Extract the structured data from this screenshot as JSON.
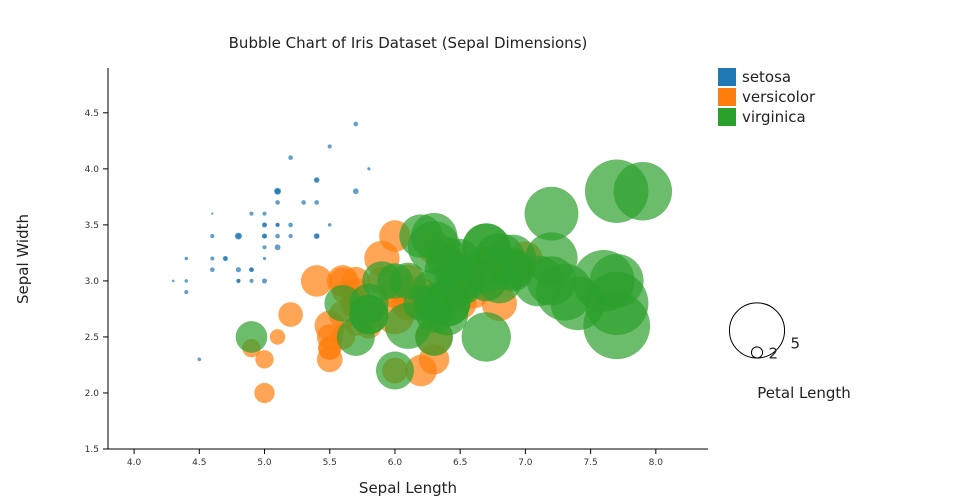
{
  "chart_data": {
    "type": "scatter",
    "title": "Bubble Chart of Iris Dataset (Sepal Dimensions)",
    "xlabel": "Sepal Length",
    "ylabel": "Sepal Width",
    "xlim": [
      3.8,
      8.4
    ],
    "ylim": [
      1.5,
      4.9
    ],
    "x_ticks": [
      "4.0",
      "4.5",
      "5.0",
      "5.5",
      "6.0",
      "6.5",
      "7.0",
      "7.5",
      "8.0"
    ],
    "y_ticks": [
      "1.5",
      "2.0",
      "2.5",
      "3.0",
      "3.5",
      "4.0",
      "4.5"
    ],
    "x_tick_values": [
      4.0,
      4.5,
      5.0,
      5.5,
      6.0,
      6.5,
      7.0,
      7.5,
      8.0
    ],
    "y_tick_values": [
      1.5,
      2.0,
      2.5,
      3.0,
      3.5,
      4.0,
      4.5
    ],
    "size_variable": "Petal Length",
    "size_legend": [
      {
        "label": "5",
        "value": 5
      },
      {
        "label": "2",
        "value": 2
      }
    ],
    "legend_position": "top-right",
    "grid": false,
    "series": [
      {
        "name": "setosa",
        "color": "#1f77b4",
        "points": [
          [
            5.1,
            3.5,
            1.4
          ],
          [
            4.9,
            3.0,
            1.4
          ],
          [
            4.7,
            3.2,
            1.3
          ],
          [
            4.6,
            3.1,
            1.5
          ],
          [
            5.0,
            3.6,
            1.4
          ],
          [
            5.4,
            3.9,
            1.7
          ],
          [
            4.6,
            3.4,
            1.4
          ],
          [
            5.0,
            3.4,
            1.5
          ],
          [
            4.4,
            2.9,
            1.4
          ],
          [
            4.9,
            3.1,
            1.5
          ],
          [
            5.4,
            3.7,
            1.5
          ],
          [
            4.8,
            3.4,
            1.6
          ],
          [
            4.8,
            3.0,
            1.4
          ],
          [
            4.3,
            3.0,
            1.1
          ],
          [
            5.8,
            4.0,
            1.2
          ],
          [
            5.7,
            4.4,
            1.5
          ],
          [
            5.4,
            3.9,
            1.3
          ],
          [
            5.1,
            3.5,
            1.4
          ],
          [
            5.7,
            3.8,
            1.7
          ],
          [
            5.1,
            3.8,
            1.5
          ],
          [
            5.4,
            3.4,
            1.7
          ],
          [
            5.1,
            3.7,
            1.5
          ],
          [
            4.6,
            3.6,
            1.0
          ],
          [
            5.1,
            3.3,
            1.7
          ],
          [
            4.8,
            3.4,
            1.9
          ],
          [
            5.0,
            3.0,
            1.6
          ],
          [
            5.0,
            3.4,
            1.6
          ],
          [
            5.2,
            3.5,
            1.5
          ],
          [
            5.2,
            3.4,
            1.4
          ],
          [
            4.7,
            3.2,
            1.6
          ],
          [
            4.8,
            3.1,
            1.6
          ],
          [
            5.4,
            3.4,
            1.5
          ],
          [
            5.2,
            4.1,
            1.5
          ],
          [
            5.5,
            4.2,
            1.4
          ],
          [
            4.9,
            3.1,
            1.5
          ],
          [
            5.0,
            3.2,
            1.2
          ],
          [
            5.5,
            3.5,
            1.3
          ],
          [
            4.9,
            3.6,
            1.4
          ],
          [
            4.4,
            3.0,
            1.3
          ],
          [
            5.1,
            3.4,
            1.5
          ],
          [
            5.0,
            3.5,
            1.3
          ],
          [
            4.5,
            2.3,
            1.3
          ],
          [
            4.4,
            3.2,
            1.3
          ],
          [
            5.0,
            3.5,
            1.6
          ],
          [
            5.1,
            3.8,
            1.9
          ],
          [
            4.8,
            3.0,
            1.4
          ],
          [
            5.1,
            3.8,
            1.6
          ],
          [
            4.6,
            3.2,
            1.4
          ],
          [
            5.3,
            3.7,
            1.5
          ],
          [
            5.0,
            3.3,
            1.4
          ]
        ]
      },
      {
        "name": "versicolor",
        "color": "#ff7f0e",
        "points": [
          [
            7.0,
            3.2,
            4.7
          ],
          [
            6.4,
            3.2,
            4.5
          ],
          [
            6.9,
            3.1,
            4.9
          ],
          [
            5.5,
            2.3,
            4.0
          ],
          [
            6.5,
            2.8,
            4.6
          ],
          [
            5.7,
            2.8,
            4.5
          ],
          [
            6.3,
            3.3,
            4.7
          ],
          [
            4.9,
            2.4,
            3.3
          ],
          [
            6.6,
            2.9,
            4.6
          ],
          [
            5.2,
            2.7,
            3.9
          ],
          [
            5.0,
            2.0,
            3.5
          ],
          [
            5.9,
            3.0,
            4.2
          ],
          [
            6.0,
            2.2,
            4.0
          ],
          [
            6.1,
            2.9,
            4.7
          ],
          [
            5.6,
            2.9,
            3.6
          ],
          [
            6.7,
            3.1,
            4.4
          ],
          [
            5.6,
            3.0,
            4.5
          ],
          [
            5.8,
            2.7,
            4.1
          ],
          [
            6.2,
            2.2,
            4.5
          ],
          [
            5.6,
            2.5,
            3.9
          ],
          [
            5.9,
            3.2,
            4.8
          ],
          [
            6.1,
            2.8,
            4.0
          ],
          [
            6.3,
            2.5,
            4.9
          ],
          [
            6.1,
            2.8,
            4.7
          ],
          [
            6.4,
            2.9,
            4.3
          ],
          [
            6.6,
            3.0,
            4.4
          ],
          [
            6.8,
            2.8,
            4.8
          ],
          [
            6.7,
            3.0,
            5.0
          ],
          [
            6.0,
            2.9,
            4.5
          ],
          [
            5.7,
            2.6,
            3.5
          ],
          [
            5.5,
            2.4,
            3.8
          ],
          [
            5.5,
            2.4,
            3.7
          ],
          [
            5.8,
            2.7,
            3.9
          ],
          [
            6.0,
            2.7,
            5.1
          ],
          [
            5.4,
            3.0,
            4.5
          ],
          [
            6.0,
            3.4,
            4.5
          ],
          [
            6.7,
            3.1,
            4.7
          ],
          [
            6.3,
            2.3,
            4.4
          ],
          [
            5.6,
            3.0,
            4.1
          ],
          [
            5.5,
            2.5,
            4.0
          ],
          [
            5.5,
            2.6,
            4.4
          ],
          [
            6.1,
            3.0,
            4.6
          ],
          [
            5.8,
            2.6,
            4.0
          ],
          [
            5.0,
            2.3,
            3.3
          ],
          [
            5.6,
            2.7,
            4.2
          ],
          [
            5.7,
            3.0,
            4.2
          ],
          [
            5.7,
            2.9,
            4.2
          ],
          [
            6.2,
            2.9,
            4.3
          ],
          [
            5.1,
            2.5,
            3.0
          ],
          [
            5.7,
            2.8,
            4.1
          ]
        ]
      },
      {
        "name": "virginica",
        "color": "#2ca02c",
        "points": [
          [
            6.3,
            3.3,
            6.0
          ],
          [
            5.8,
            2.7,
            5.1
          ],
          [
            7.1,
            3.0,
            5.9
          ],
          [
            6.3,
            2.9,
            5.6
          ],
          [
            6.5,
            3.0,
            5.8
          ],
          [
            7.6,
            3.0,
            6.6
          ],
          [
            4.9,
            2.5,
            4.5
          ],
          [
            7.3,
            2.9,
            6.3
          ],
          [
            6.7,
            2.5,
            5.8
          ],
          [
            7.2,
            3.6,
            6.1
          ],
          [
            6.5,
            3.2,
            5.1
          ],
          [
            6.4,
            2.7,
            5.3
          ],
          [
            6.8,
            3.0,
            5.5
          ],
          [
            5.7,
            2.5,
            5.0
          ],
          [
            5.8,
            2.8,
            5.1
          ],
          [
            6.4,
            3.2,
            5.3
          ],
          [
            6.5,
            3.0,
            5.5
          ],
          [
            7.7,
            3.8,
            6.7
          ],
          [
            7.7,
            2.6,
            6.9
          ],
          [
            6.0,
            2.2,
            5.0
          ],
          [
            6.9,
            3.2,
            5.7
          ],
          [
            5.6,
            2.8,
            4.9
          ],
          [
            7.7,
            2.8,
            6.7
          ],
          [
            6.3,
            2.7,
            4.9
          ],
          [
            6.7,
            3.3,
            5.7
          ],
          [
            7.2,
            3.2,
            6.0
          ],
          [
            6.2,
            2.8,
            4.8
          ],
          [
            6.1,
            3.0,
            4.9
          ],
          [
            6.4,
            2.8,
            5.6
          ],
          [
            7.2,
            3.0,
            5.8
          ],
          [
            7.4,
            2.8,
            6.1
          ],
          [
            7.9,
            3.8,
            6.4
          ],
          [
            6.4,
            2.8,
            5.6
          ],
          [
            6.3,
            2.8,
            5.1
          ],
          [
            6.1,
            2.6,
            5.6
          ],
          [
            7.7,
            3.0,
            6.1
          ],
          [
            6.3,
            3.4,
            5.6
          ],
          [
            6.4,
            3.1,
            5.5
          ],
          [
            6.0,
            3.0,
            4.8
          ],
          [
            6.9,
            3.1,
            5.4
          ],
          [
            6.7,
            3.1,
            5.6
          ],
          [
            6.9,
            3.1,
            5.1
          ],
          [
            5.8,
            2.7,
            5.1
          ],
          [
            6.8,
            3.2,
            5.9
          ],
          [
            6.7,
            3.3,
            5.7
          ],
          [
            6.7,
            3.0,
            5.2
          ],
          [
            6.3,
            2.5,
            5.0
          ],
          [
            6.5,
            3.0,
            5.2
          ],
          [
            6.2,
            3.4,
            5.4
          ],
          [
            5.9,
            3.0,
            5.1
          ]
        ]
      }
    ]
  }
}
